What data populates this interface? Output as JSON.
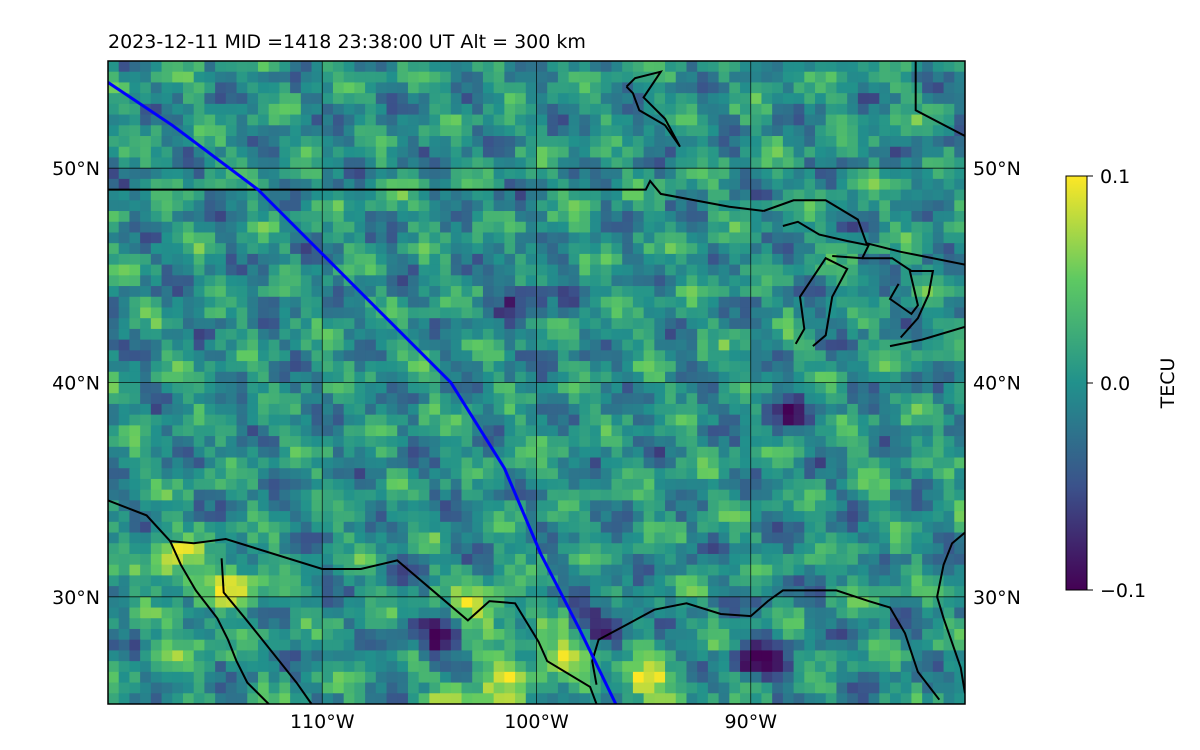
{
  "title": "2023-12-11  MID =1418    23:38:00  UT  Alt = 300 km",
  "chart_data": {
    "type": "heatmap",
    "title": "2023-12-11  MID =1418    23:38:00  UT  Alt = 300 km",
    "map_extent": {
      "lon": [
        -120,
        -80
      ],
      "lat": [
        25,
        55
      ]
    },
    "x_ticks": [
      {
        "value": -110,
        "label": "110°W"
      },
      {
        "value": -100,
        "label": "100°W"
      },
      {
        "value": -90,
        "label": "90°W"
      }
    ],
    "y_ticks": [
      {
        "value": 50,
        "label": "50°N"
      },
      {
        "value": 40,
        "label": "40°N"
      },
      {
        "value": 30,
        "label": "30°N"
      }
    ],
    "grid": true,
    "colorbar": {
      "label": "TECU",
      "range": [
        -0.1,
        0.1
      ],
      "ticks": [
        {
          "value": 0.1,
          "label": "0.1"
        },
        {
          "value": 0.0,
          "label": "0.0"
        },
        {
          "value": -0.1,
          "label": "−0.1"
        }
      ],
      "colormap": "viridis",
      "colormap_stops": [
        "#440154",
        "#3b528b",
        "#21918c",
        "#5ec962",
        "#fde725"
      ]
    },
    "satellite_track": {
      "color": "#0000ff",
      "lon": [
        -120.0,
        -117.0,
        -113.0,
        -110.0,
        -107.0,
        -104.0,
        -101.5,
        -99.8,
        -98.0,
        -96.3
      ],
      "lat": [
        54.0,
        52.0,
        49.0,
        46.0,
        43.0,
        40.0,
        36.0,
        32.0,
        28.5,
        25.0
      ]
    },
    "field_summary": {
      "background_value": 0.0,
      "positive_regions": [
        {
          "lon": -117.0,
          "lat": 31.5,
          "value": 0.09
        },
        {
          "lon": -114.0,
          "lat": 30.6,
          "value": 0.08
        },
        {
          "lon": -102.5,
          "lat": 29.5,
          "value": 0.09
        },
        {
          "lon": -101.0,
          "lat": 26.5,
          "value": 0.08
        },
        {
          "lon": -98.5,
          "lat": 27.5,
          "value": 0.08
        },
        {
          "lon": -95.0,
          "lat": 26.0,
          "value": 0.1
        },
        {
          "lon": -116.0,
          "lat": 28.0,
          "value": 0.05
        },
        {
          "lon": -103.5,
          "lat": 25.3,
          "value": 0.08
        }
      ],
      "negative_regions": [
        {
          "lon": -89.5,
          "lat": 27.0,
          "value": -0.1
        },
        {
          "lon": -104.5,
          "lat": 28.0,
          "value": -0.08
        },
        {
          "lon": -97.0,
          "lat": 29.0,
          "value": -0.07
        },
        {
          "lon": -88.5,
          "lat": 38.5,
          "value": -0.06
        },
        {
          "lon": -100.5,
          "lat": 44.0,
          "value": -0.06
        }
      ]
    }
  }
}
